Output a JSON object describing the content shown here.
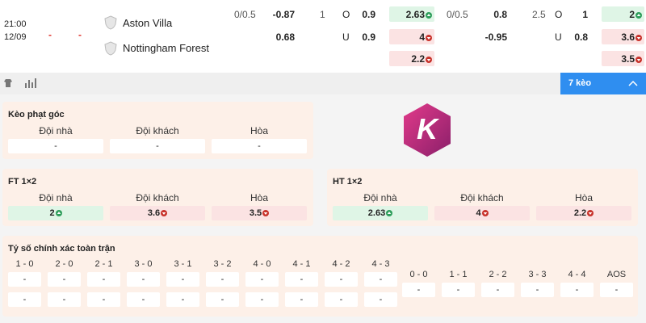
{
  "top": {
    "time": "21:00",
    "date": "12/09",
    "home_score": "-",
    "away_score": "-",
    "home_team": "Aston Villa",
    "away_team": "Nottingham Forest",
    "market_1": {
      "handicap_line": "0/0.5",
      "home_price": -0.87,
      "away_price": 0.68,
      "total_line": 1,
      "over": "O",
      "under": "U",
      "over_price": 0.9,
      "under_price": 0.9,
      "result": [
        {
          "value": 2.63,
          "trend": "up"
        },
        {
          "value": 4,
          "trend": "down"
        },
        {
          "value": 2.2,
          "trend": "down"
        }
      ]
    },
    "market_2": {
      "handicap_line": "0/0.5",
      "home_price": 0.8,
      "away_price": -0.95,
      "total_line": 2.5,
      "over": "O",
      "under": "U",
      "over_price": 1,
      "under_price": 0.8,
      "result": [
        {
          "value": 2,
          "trend": "up"
        },
        {
          "value": 3.6,
          "trend": "down"
        },
        {
          "value": 3.5,
          "trend": "down"
        }
      ]
    }
  },
  "toolbar": {
    "more": "7 kèo"
  },
  "logo": "K",
  "corners": {
    "title": "Kèo phạt góc",
    "headers": [
      "Đội nhà",
      "Đội khách",
      "Hòa"
    ],
    "odds": [
      {
        "value": "-"
      },
      {
        "value": "-"
      },
      {
        "value": "-"
      }
    ]
  },
  "ft_1x2": {
    "title": "FT 1×2",
    "headers": [
      "Đội nhà",
      "Đội khách",
      "Hòa"
    ],
    "odds": [
      {
        "value": 2,
        "trend": "up"
      },
      {
        "value": 3.6,
        "trend": "down"
      },
      {
        "value": 3.5,
        "trend": "down"
      }
    ]
  },
  "ht_1x2": {
    "title": "HT 1×2",
    "headers": [
      "Đội nhà",
      "Đội khách",
      "Hòa"
    ],
    "odds": [
      {
        "value": 2.63,
        "trend": "up"
      },
      {
        "value": 4,
        "trend": "down"
      },
      {
        "value": 2.2,
        "trend": "down"
      }
    ]
  },
  "correct_score": {
    "title": "Tỷ số chính xác toàn trận",
    "left": [
      {
        "score": "1 - 0",
        "odds": [
          "-",
          "-"
        ]
      },
      {
        "score": "2 - 0",
        "odds": [
          "-",
          "-"
        ]
      },
      {
        "score": "2 - 1",
        "odds": [
          "-",
          "-"
        ]
      },
      {
        "score": "3 - 0",
        "odds": [
          "-",
          "-"
        ]
      },
      {
        "score": "3 - 1",
        "odds": [
          "-",
          "-"
        ]
      },
      {
        "score": "3 - 2",
        "odds": [
          "-",
          "-"
        ]
      },
      {
        "score": "4 - 0",
        "odds": [
          "-",
          "-"
        ]
      },
      {
        "score": "4 - 1",
        "odds": [
          "-",
          "-"
        ]
      },
      {
        "score": "4 - 2",
        "odds": [
          "-",
          "-"
        ]
      },
      {
        "score": "4 - 3",
        "odds": [
          "-",
          "-"
        ]
      }
    ],
    "right": [
      {
        "score": "0 - 0",
        "odds": [
          "-"
        ]
      },
      {
        "score": "1 - 1",
        "odds": [
          "-"
        ]
      },
      {
        "score": "2 - 2",
        "odds": [
          "-"
        ]
      },
      {
        "score": "3 - 3",
        "odds": [
          "-"
        ]
      },
      {
        "score": "4 - 4",
        "odds": [
          "-"
        ]
      },
      {
        "score": "AOS",
        "odds": [
          "-"
        ]
      }
    ]
  }
}
